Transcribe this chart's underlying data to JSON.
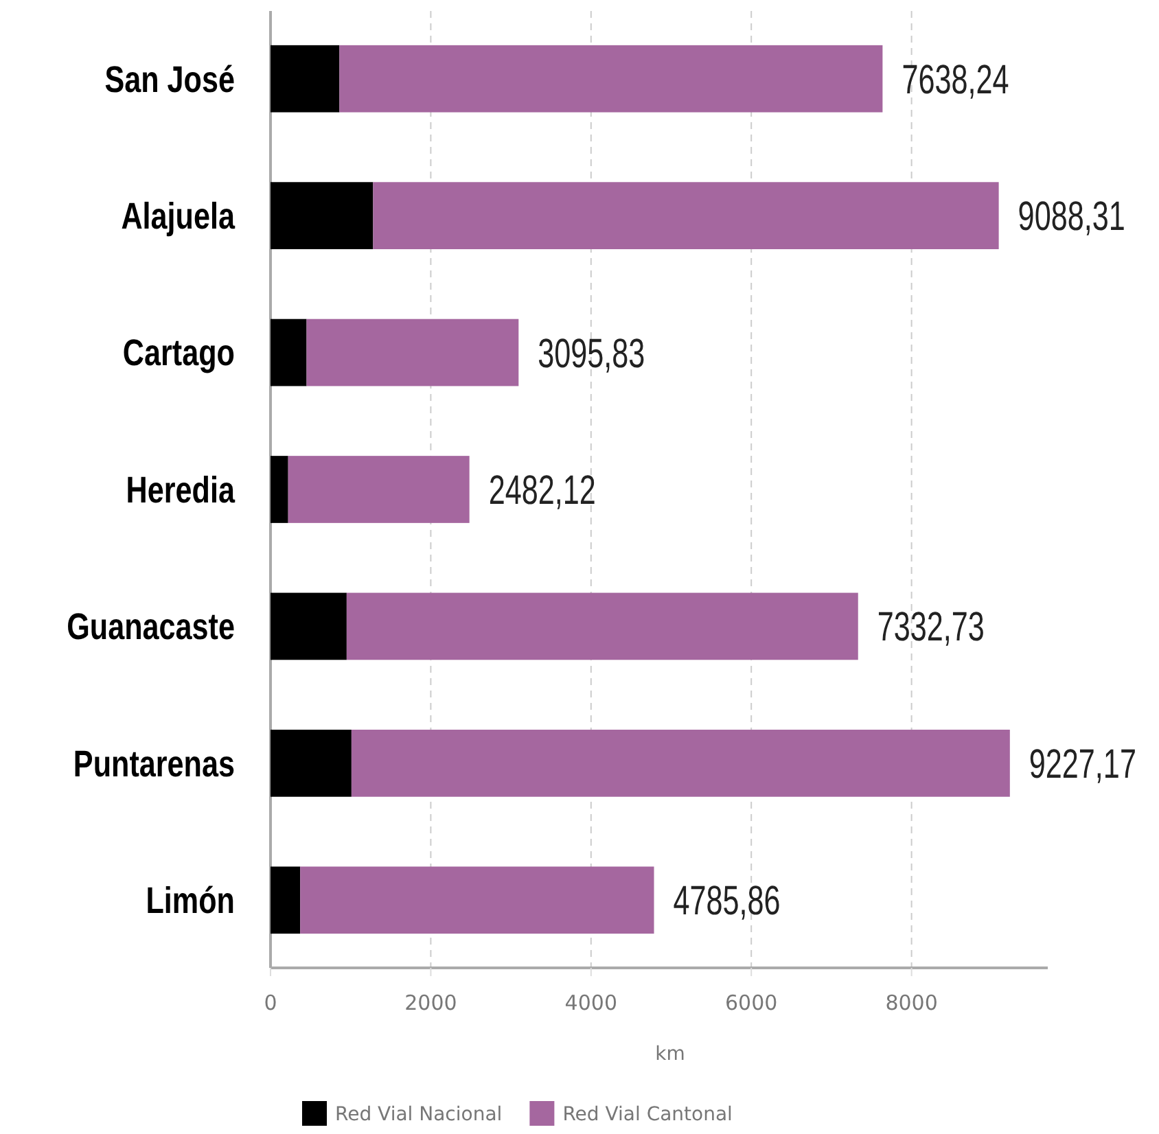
{
  "chart_data": {
    "type": "bar",
    "orientation": "horizontal",
    "stacked": true,
    "categories": [
      "San José",
      "Alajuela",
      "Cartago",
      "Heredia",
      "Guanacaste",
      "Puntarenas",
      "Limón"
    ],
    "series": [
      {
        "name": "Red Vial Nacional",
        "color": "#000000",
        "values": [
          860,
          1280,
          450,
          220,
          950,
          1010,
          370
        ]
      },
      {
        "name": "Red Vial Cantonal",
        "color": "#a5679f",
        "values": [
          6778.24,
          7808.31,
          2645.83,
          2262.12,
          6382.73,
          8217.17,
          4415.86
        ]
      }
    ],
    "totals": [
      "7638,24",
      "9088,31",
      "3095,83",
      "2482,12",
      "7332,73",
      "9227,17",
      "4785,86"
    ],
    "xlabel": "km",
    "xlim": [
      0,
      9700
    ],
    "xticks": [
      0,
      2000,
      4000,
      6000,
      8000
    ],
    "grid": "x",
    "legend": "bottom"
  }
}
